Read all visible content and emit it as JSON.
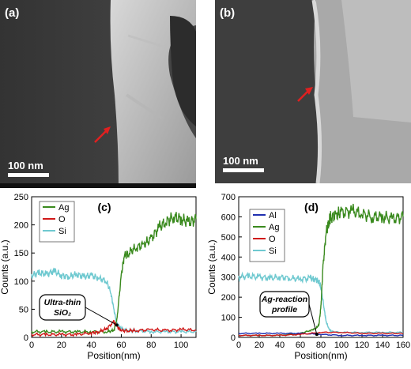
{
  "panel_a": {
    "label": "(a)",
    "scale_text": "100 nm"
  },
  "panel_b": {
    "label": "(b)",
    "scale_text": "100 nm"
  },
  "colors": {
    "Al": "#1f2fb0",
    "Ag": "#3a8a1e",
    "O": "#d01818",
    "Si": "#6fc9d0"
  },
  "chart_data": [
    {
      "type": "line",
      "panel": "(c)",
      "xlabel": "Position(nm)",
      "ylabel": "Counts (a.u.)",
      "xlim": [
        0,
        110
      ],
      "ylim": [
        0,
        250
      ],
      "xticks": [
        0,
        20,
        40,
        60,
        80,
        100
      ],
      "yticks": [
        0,
        50,
        100,
        150,
        200,
        250
      ],
      "legend": [
        "Ag",
        "O",
        "Si"
      ],
      "annotation": "Ultra-thin SiO₂",
      "series": [
        {
          "name": "Ag",
          "x": [
            0,
            10,
            20,
            30,
            40,
            50,
            55,
            57,
            60,
            62,
            65,
            70,
            75,
            80,
            85,
            90,
            95,
            100,
            105,
            110
          ],
          "values": [
            10,
            10,
            10,
            10,
            10,
            10,
            12,
            30,
            110,
            145,
            150,
            160,
            165,
            175,
            195,
            205,
            215,
            210,
            205,
            210
          ]
        },
        {
          "name": "O",
          "x": [
            0,
            10,
            20,
            30,
            40,
            45,
            50,
            55,
            57,
            60,
            65,
            70,
            80,
            90,
            100,
            110
          ],
          "values": [
            5,
            5,
            5,
            5,
            8,
            10,
            15,
            28,
            20,
            12,
            12,
            12,
            14,
            12,
            14,
            13
          ]
        },
        {
          "name": "Si",
          "x": [
            0,
            5,
            10,
            15,
            20,
            25,
            30,
            35,
            40,
            45,
            50,
            53,
            55,
            57,
            60,
            65,
            70,
            80,
            90,
            100,
            110
          ],
          "values": [
            110,
            115,
            112,
            118,
            110,
            108,
            112,
            108,
            110,
            105,
            100,
            80,
            50,
            25,
            15,
            12,
            12,
            10,
            10,
            10,
            10
          ]
        }
      ]
    },
    {
      "type": "line",
      "panel": "(d)",
      "xlabel": "Position(nm)",
      "ylabel": "Counts (a.u.)",
      "xlim": [
        0,
        160
      ],
      "ylim": [
        0,
        700
      ],
      "xticks": [
        0,
        20,
        40,
        60,
        80,
        100,
        120,
        140,
        160
      ],
      "yticks": [
        0,
        100,
        200,
        300,
        400,
        500,
        600,
        700
      ],
      "legend": [
        "Al",
        "Ag",
        "O",
        "Si"
      ],
      "annotation": "Ag-reaction profile",
      "series": [
        {
          "name": "Al",
          "x": [
            0,
            20,
            40,
            60,
            80,
            100,
            120,
            140,
            160
          ],
          "values": [
            20,
            20,
            20,
            20,
            15,
            10,
            10,
            10,
            10
          ]
        },
        {
          "name": "Ag",
          "x": [
            0,
            20,
            40,
            60,
            70,
            75,
            78,
            80,
            82,
            85,
            88,
            90,
            95,
            100,
            110,
            120,
            130,
            140,
            150,
            160
          ],
          "values": [
            10,
            10,
            10,
            20,
            35,
            45,
            60,
            150,
            350,
            520,
            580,
            600,
            610,
            620,
            630,
            615,
            600,
            600,
            590,
            600
          ]
        },
        {
          "name": "O",
          "x": [
            0,
            20,
            40,
            60,
            80,
            100,
            120,
            140,
            160
          ],
          "values": [
            10,
            10,
            10,
            15,
            25,
            25,
            20,
            20,
            20
          ]
        },
        {
          "name": "Si",
          "x": [
            0,
            10,
            20,
            30,
            40,
            50,
            60,
            70,
            75,
            78,
            80,
            83,
            85,
            88,
            90,
            100,
            120,
            140,
            160
          ],
          "values": [
            300,
            305,
            300,
            295,
            300,
            295,
            290,
            295,
            285,
            280,
            250,
            150,
            80,
            40,
            30,
            25,
            25,
            25,
            25
          ]
        }
      ]
    }
  ]
}
